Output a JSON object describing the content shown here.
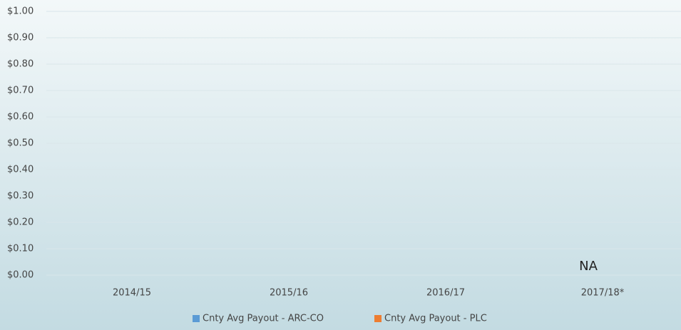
{
  "chart_data": {
    "type": "bar",
    "categories": [
      "2014/15",
      "2015/16",
      "2016/17",
      "2017/18*"
    ],
    "series": [
      {
        "name": "Cnty Avg Payout - ARC-CO",
        "color": "#5b9bd5",
        "values": [
          0,
          0,
          0,
          null
        ]
      },
      {
        "name": "Cnty Avg Payout - PLC",
        "color": "#ed7d31",
        "values": [
          0,
          0,
          0,
          null
        ]
      }
    ],
    "annotation": "NA",
    "ylim": [
      0,
      1
    ],
    "yticks": [
      {
        "value": 0,
        "label": "$0.00"
      },
      {
        "value": 0.1,
        "label": "$0.10"
      },
      {
        "value": 0.2,
        "label": "$0.20"
      },
      {
        "value": 0.3,
        "label": "$0.30"
      },
      {
        "value": 0.4,
        "label": "$0.40"
      },
      {
        "value": 0.5,
        "label": "$0.50"
      },
      {
        "value": 0.6,
        "label": "$0.60"
      },
      {
        "value": 0.7,
        "label": "$0.70"
      },
      {
        "value": 0.8,
        "label": "$0.80"
      },
      {
        "value": 0.9,
        "label": "$0.90"
      },
      {
        "value": 1,
        "label": "$1.00"
      }
    ],
    "grid": true,
    "legend": "bottom"
  }
}
